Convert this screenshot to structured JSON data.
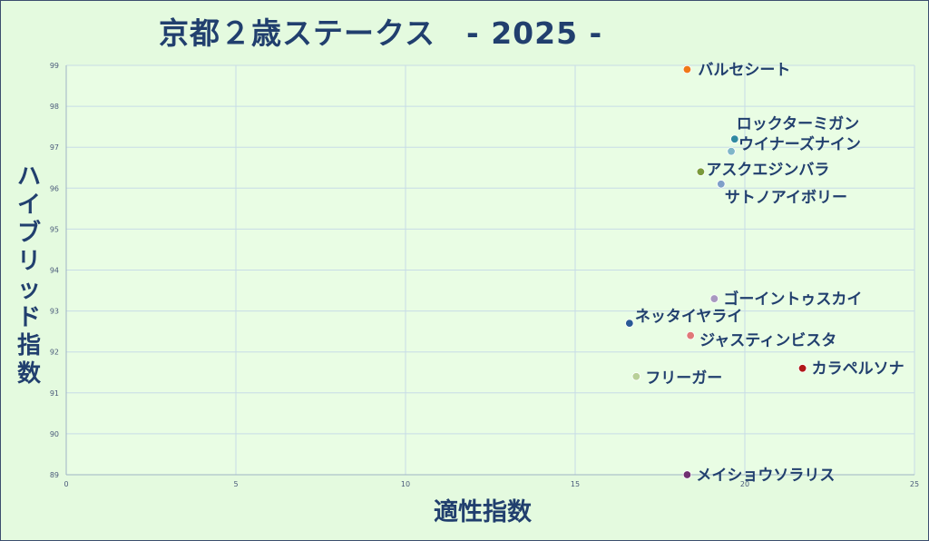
{
  "chart_data": {
    "type": "scatter",
    "title": "京都２歳ステークス　- 2025 -",
    "xlabel": "適性指数",
    "ylabel": "ハイブリッド指数",
    "xlim": [
      0,
      25
    ],
    "ylim": [
      89,
      99
    ],
    "xticks": [
      "0",
      "5",
      "10",
      "15",
      "20",
      "25"
    ],
    "yticks": [
      "89",
      "90",
      "91",
      "92",
      "93",
      "94",
      "95",
      "96",
      "97",
      "98",
      "99"
    ],
    "grid": true,
    "points": [
      {
        "label": "バルセシート",
        "x": 18.3,
        "y": 98.9,
        "color": "#f07818"
      },
      {
        "label": "ロックターミガン",
        "x": 19.7,
        "y": 97.2,
        "color": "#2f8aa0"
      },
      {
        "label": "ウイナーズナイン",
        "x": 19.6,
        "y": 96.9,
        "color": "#7fb6c8"
      },
      {
        "label": "アスクエジンバラ",
        "x": 18.7,
        "y": 96.4,
        "color": "#7a9a3a"
      },
      {
        "label": "サトノアイボリー",
        "x": 19.3,
        "y": 96.1,
        "color": "#7f9fc8"
      },
      {
        "label": "ゴーイントゥスカイ",
        "x": 19.1,
        "y": 93.3,
        "color": "#a898c0"
      },
      {
        "label": "ネッタイヤライ",
        "x": 16.6,
        "y": 92.7,
        "color": "#2a5a96"
      },
      {
        "label": "ジャスティンビスタ",
        "x": 18.4,
        "y": 92.4,
        "color": "#e07878"
      },
      {
        "label": "カラペルソナ",
        "x": 21.7,
        "y": 91.6,
        "color": "#b01818"
      },
      {
        "label": "フリーガー",
        "x": 16.8,
        "y": 91.4,
        "color": "#b8d098"
      },
      {
        "label": "メイショウソラリス",
        "x": 18.3,
        "y": 89.0,
        "color": "#703070"
      }
    ]
  }
}
